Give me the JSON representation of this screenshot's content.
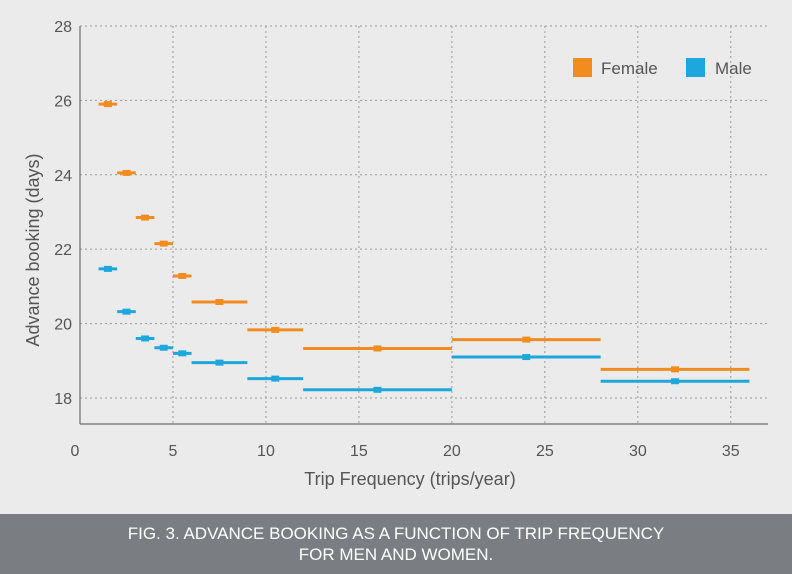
{
  "caption": {
    "line1": "FIG. 3. ADVANCE BOOKING AS A FUNCTION OF TRIP FREQUENCY",
    "line2": "FOR MEN AND WOMEN."
  },
  "chart_data": {
    "type": "scatter",
    "title": "FIG. 3. ADVANCE BOOKING AS A FUNCTION OF TRIP FREQUENCY FOR MEN AND WOMEN.",
    "xlabel": "Trip Frequency (trips/year)",
    "ylabel": "Advance booking (days)",
    "xlim": [
      0,
      37
    ],
    "ylim": [
      17.3,
      28
    ],
    "xticks": [
      0,
      5,
      10,
      15,
      20,
      25,
      30,
      35
    ],
    "yticks": [
      18,
      20,
      22,
      24,
      26,
      28
    ],
    "grid": true,
    "legend_position": "top-right",
    "series": [
      {
        "name": "Female",
        "color": "#f28c1e",
        "points": [
          {
            "x": 1.5,
            "xmin": 1.0,
            "xmax": 2.0,
            "y": 25.9
          },
          {
            "x": 2.5,
            "xmin": 2.0,
            "xmax": 3.0,
            "y": 24.05
          },
          {
            "x": 3.5,
            "xmin": 3.0,
            "xmax": 4.0,
            "y": 22.85
          },
          {
            "x": 4.5,
            "xmin": 4.0,
            "xmax": 5.0,
            "y": 22.15
          },
          {
            "x": 5.5,
            "xmin": 5.0,
            "xmax": 6.0,
            "y": 21.28
          },
          {
            "x": 7.5,
            "xmin": 6.0,
            "xmax": 9.0,
            "y": 20.58
          },
          {
            "x": 10.5,
            "xmin": 9.0,
            "xmax": 12.0,
            "y": 19.83
          },
          {
            "x": 16.0,
            "xmin": 12.0,
            "xmax": 20.0,
            "y": 19.33
          },
          {
            "x": 24.0,
            "xmin": 20.0,
            "xmax": 28.0,
            "y": 19.57
          },
          {
            "x": 32.0,
            "xmin": 28.0,
            "xmax": 36.0,
            "y": 18.77
          }
        ]
      },
      {
        "name": "Male",
        "color": "#1ea7dd",
        "points": [
          {
            "x": 1.5,
            "xmin": 1.0,
            "xmax": 2.0,
            "y": 21.47
          },
          {
            "x": 2.5,
            "xmin": 2.0,
            "xmax": 3.0,
            "y": 20.32
          },
          {
            "x": 3.5,
            "xmin": 3.0,
            "xmax": 4.0,
            "y": 19.6
          },
          {
            "x": 4.5,
            "xmin": 4.0,
            "xmax": 5.0,
            "y": 19.35
          },
          {
            "x": 5.5,
            "xmin": 5.0,
            "xmax": 6.0,
            "y": 19.2
          },
          {
            "x": 7.5,
            "xmin": 6.0,
            "xmax": 9.0,
            "y": 18.95
          },
          {
            "x": 10.5,
            "xmin": 9.0,
            "xmax": 12.0,
            "y": 18.52
          },
          {
            "x": 16.0,
            "xmin": 12.0,
            "xmax": 20.0,
            "y": 18.22
          },
          {
            "x": 24.0,
            "xmin": 20.0,
            "xmax": 28.0,
            "y": 19.1
          },
          {
            "x": 32.0,
            "xmin": 28.0,
            "xmax": 36.0,
            "y": 18.45
          }
        ]
      }
    ]
  }
}
